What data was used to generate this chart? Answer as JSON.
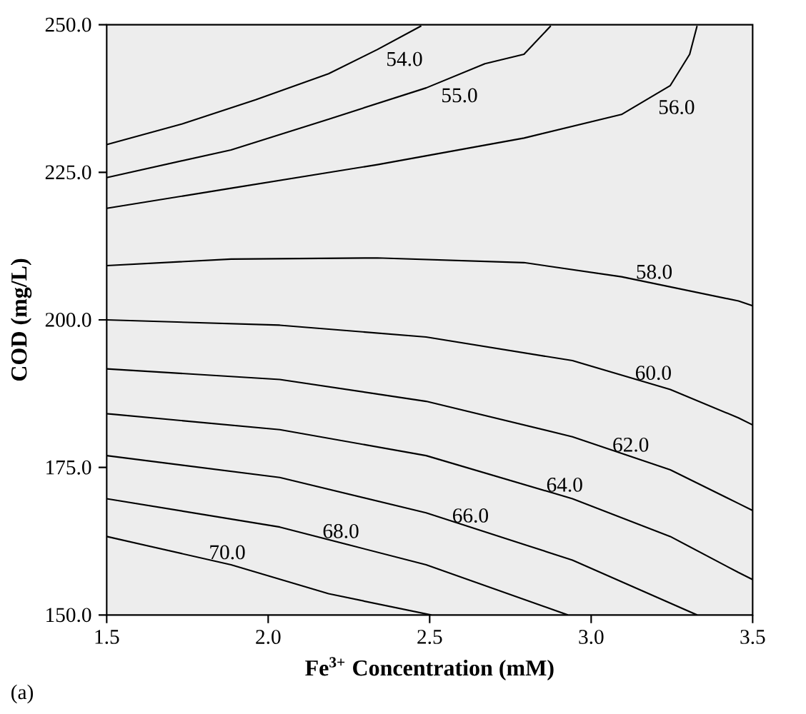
{
  "chart_data": {
    "type": "line",
    "xlabel": "Fe$^{3+}$ Concentration (mM)",
    "ylabel": "COD (mg/L)",
    "annotations": [
      "(a)"
    ],
    "xlim": [
      1.5,
      3.5
    ],
    "ylim": [
      150,
      250
    ],
    "xticks": [
      {
        "value": 1.5,
        "label": "1.5"
      },
      {
        "value": 2,
        "label": "2.0"
      },
      {
        "value": 2.5,
        "label": "2.5"
      },
      {
        "value": 3,
        "label": "3.0"
      },
      {
        "value": 3.5,
        "label": "3.5"
      }
    ],
    "yticks": [
      {
        "value": 150,
        "label": "150.0"
      },
      {
        "value": 175,
        "label": "175.0"
      },
      {
        "value": 200,
        "label": "200.0"
      },
      {
        "value": 225,
        "label": "225.0"
      },
      {
        "value": 250,
        "label": "250.0"
      }
    ],
    "grid": false,
    "legend": false,
    "marker": "none",
    "line_style": "solid",
    "series": [
      {
        "name": "54.0",
        "color": "#000000",
        "x": [
          1.5,
          1.734,
          1.961,
          2.187,
          2.338,
          2.474
        ],
        "values": [
          229.7,
          233.2,
          237.3,
          241.7,
          245.8,
          249.8
        ]
      },
      {
        "name": "55.0",
        "color": "#000000",
        "x": [
          1.5,
          1.885,
          2.187,
          2.489,
          2.671,
          2.792,
          2.875
        ],
        "values": [
          224.1,
          228.8,
          234.0,
          239.3,
          243.4,
          245.0,
          249.8
        ]
      },
      {
        "name": "56.0",
        "color": "#000000",
        "x": [
          1.5,
          1.885,
          2.338,
          2.792,
          3.094,
          3.245,
          3.305,
          3.328
        ],
        "values": [
          218.9,
          222.3,
          226.3,
          230.8,
          234.8,
          239.7,
          245.0,
          249.8
        ]
      },
      {
        "name": "58.0",
        "color": "#000000",
        "x": [
          1.5,
          1.885,
          2.338,
          2.792,
          3.094,
          3.456,
          3.5
        ],
        "values": [
          209.2,
          210.3,
          210.5,
          209.7,
          207.3,
          203.2,
          202.4
        ]
      },
      {
        "name": "60.0",
        "color": "#000000",
        "x": [
          1.5,
          2.036,
          2.489,
          2.942,
          3.245,
          3.456,
          3.5
        ],
        "values": [
          200.0,
          199.1,
          197.1,
          193.1,
          188.2,
          183.4,
          182.2
        ]
      },
      {
        "name": "62.0",
        "color": "#000000",
        "x": [
          1.5,
          2.036,
          2.489,
          2.942,
          3.245,
          3.456,
          3.5
        ],
        "values": [
          191.7,
          189.9,
          186.2,
          180.2,
          174.6,
          168.9,
          167.7
        ]
      },
      {
        "name": "64.0",
        "color": "#000000",
        "x": [
          1.5,
          2.036,
          2.489,
          2.942,
          3.245,
          3.456,
          3.5
        ],
        "values": [
          184.1,
          181.4,
          177.0,
          169.7,
          163.3,
          157.2,
          156.0
        ]
      },
      {
        "name": "66.0",
        "color": "#000000",
        "x": [
          1.5,
          2.036,
          2.489,
          2.942,
          3.328
        ],
        "values": [
          177.0,
          173.3,
          167.3,
          159.3,
          150.0
        ]
      },
      {
        "name": "68.0",
        "color": "#000000",
        "x": [
          1.5,
          2.036,
          2.489,
          2.928
        ],
        "values": [
          169.7,
          164.9,
          158.5,
          150.0
        ]
      },
      {
        "name": "70.0",
        "color": "#000000",
        "x": [
          1.5,
          1.885,
          2.187,
          2.505
        ],
        "values": [
          163.3,
          158.5,
          153.6,
          150.0
        ]
      }
    ]
  }
}
